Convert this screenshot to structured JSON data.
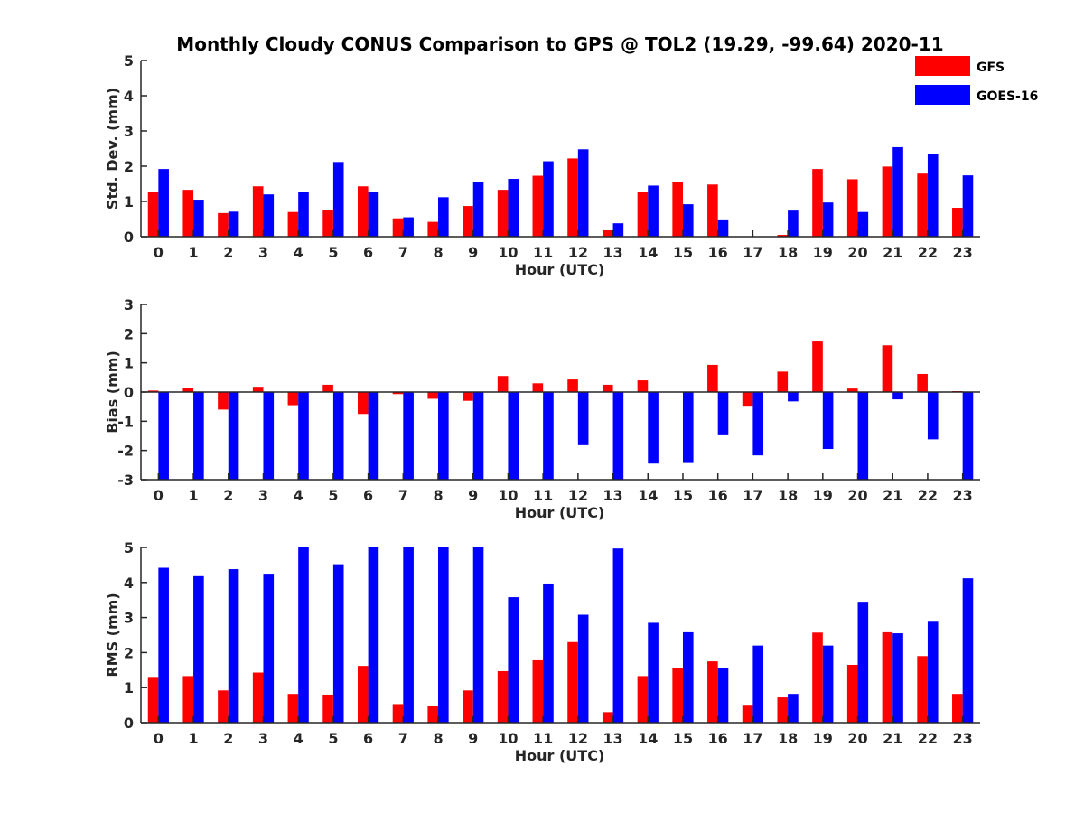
{
  "title": "Monthly Cloudy CONUS Comparison to GPS @ TOL2 (19.29, -99.64) 2020-11",
  "legend": {
    "entries": [
      {
        "name": "GFS",
        "color": "#ff0000"
      },
      {
        "name": "GOES-16",
        "color": "#0000ff"
      }
    ]
  },
  "chart_data": [
    {
      "type": "bar",
      "ylabel": "Std. Dev. (mm)",
      "xlabel": "Hour (UTC)",
      "categories": [
        "0",
        "1",
        "2",
        "3",
        "4",
        "5",
        "6",
        "7",
        "8",
        "9",
        "10",
        "11",
        "12",
        "13",
        "14",
        "15",
        "16",
        "17",
        "18",
        "19",
        "20",
        "21",
        "22",
        "23"
      ],
      "ylim": [
        0,
        5
      ],
      "yticks": [
        "0",
        "1",
        "2",
        "3",
        "4",
        "5"
      ],
      "series": [
        {
          "name": "GFS",
          "color": "#ff0000",
          "values": [
            1.28,
            1.33,
            0.67,
            1.43,
            0.7,
            0.75,
            1.43,
            0.52,
            0.42,
            0.87,
            1.33,
            1.73,
            2.22,
            0.18,
            1.28,
            1.56,
            1.48,
            0,
            0.05,
            1.92,
            1.63,
            1.99,
            1.79,
            0.82
          ]
        },
        {
          "name": "GOES-16",
          "color": "#0000ff",
          "values": [
            1.92,
            1.05,
            0.71,
            1.2,
            1.26,
            2.12,
            1.28,
            0.55,
            1.12,
            1.56,
            1.64,
            2.14,
            2.48,
            0.38,
            1.45,
            0.92,
            0.49,
            0,
            0.74,
            0.97,
            0.7,
            2.54,
            2.35,
            1.74
          ]
        }
      ]
    },
    {
      "type": "bar",
      "ylabel": "Bias (mm)",
      "xlabel": "Hour (UTC)",
      "categories": [
        "0",
        "1",
        "2",
        "3",
        "4",
        "5",
        "6",
        "7",
        "8",
        "9",
        "10",
        "11",
        "12",
        "13",
        "14",
        "15",
        "16",
        "17",
        "18",
        "19",
        "20",
        "21",
        "22",
        "23"
      ],
      "ylim": [
        -3,
        3
      ],
      "yticks": [
        "-3",
        "-2",
        "-1",
        "0",
        "1",
        "2",
        "3"
      ],
      "series": [
        {
          "name": "GFS",
          "color": "#ff0000",
          "values": [
            0.05,
            0.15,
            -0.6,
            0.18,
            -0.45,
            0.25,
            -0.75,
            -0.07,
            -0.23,
            -0.3,
            0.55,
            0.3,
            0.43,
            0.25,
            0.4,
            0,
            0.93,
            -0.5,
            0.7,
            1.73,
            0.12,
            1.6,
            0.62,
            0.03
          ]
        },
        {
          "name": "GOES-16",
          "color": "#0000ff",
          "values": [
            -3,
            -3,
            -3,
            -3,
            -3,
            -3,
            -3,
            -3,
            -3,
            -3,
            -3,
            -3,
            -1.82,
            -3,
            -2.45,
            -2.4,
            -1.45,
            -2.17,
            -0.32,
            -1.95,
            -3,
            -0.25,
            -1.62,
            -3
          ]
        }
      ]
    },
    {
      "type": "bar",
      "ylabel": "RMS (mm)",
      "xlabel": "Hour (UTC)",
      "categories": [
        "0",
        "1",
        "2",
        "3",
        "4",
        "5",
        "6",
        "7",
        "8",
        "9",
        "10",
        "11",
        "12",
        "13",
        "14",
        "15",
        "16",
        "17",
        "18",
        "19",
        "20",
        "21",
        "22",
        "23"
      ],
      "ylim": [
        0,
        5
      ],
      "yticks": [
        "0",
        "1",
        "2",
        "3",
        "4",
        "5"
      ],
      "series": [
        {
          "name": "GFS",
          "color": "#ff0000",
          "values": [
            1.28,
            1.33,
            0.92,
            1.43,
            0.82,
            0.8,
            1.62,
            0.53,
            0.48,
            0.92,
            1.47,
            1.78,
            2.3,
            0.3,
            1.33,
            1.57,
            1.75,
            0.51,
            0.72,
            2.57,
            1.65,
            2.58,
            1.9,
            0.82
          ]
        },
        {
          "name": "GOES-16",
          "color": "#0000ff",
          "values": [
            4.42,
            4.18,
            4.38,
            4.25,
            5,
            4.52,
            5,
            5,
            5,
            5,
            3.58,
            3.97,
            3.08,
            4.97,
            2.85,
            2.58,
            1.55,
            2.2,
            0.82,
            2.2,
            3.45,
            2.55,
            2.88,
            4.12
          ]
        }
      ]
    }
  ]
}
